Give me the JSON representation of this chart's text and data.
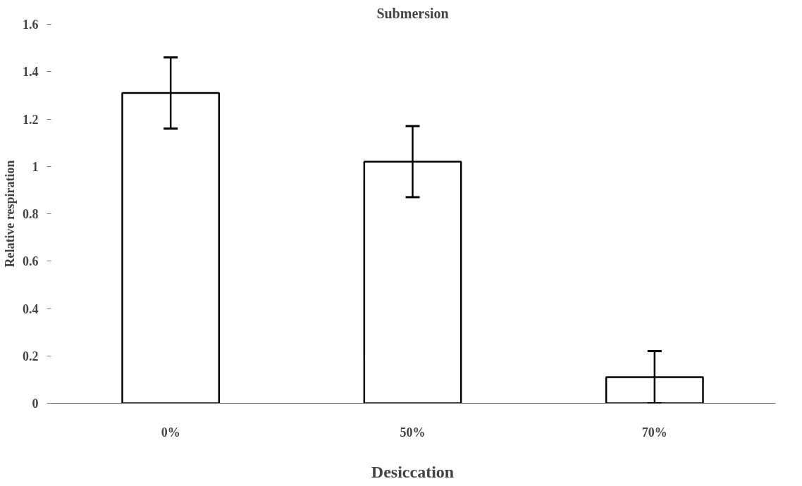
{
  "chart_data": {
    "type": "bar",
    "title": "Submersion",
    "xlabel": "Desiccation",
    "ylabel": "Relative respiration",
    "categories": [
      "0%",
      "50%",
      "70%"
    ],
    "values": [
      1.31,
      1.02,
      0.11
    ],
    "errors": [
      0.15,
      0.15,
      0.11
    ],
    "color": "#ffffff",
    "ylim": [
      0,
      1.6
    ],
    "yticks": [
      0,
      0.2,
      0.4,
      0.6,
      0.8,
      1,
      1.2,
      1.4,
      1.6
    ],
    "grid": false
  }
}
